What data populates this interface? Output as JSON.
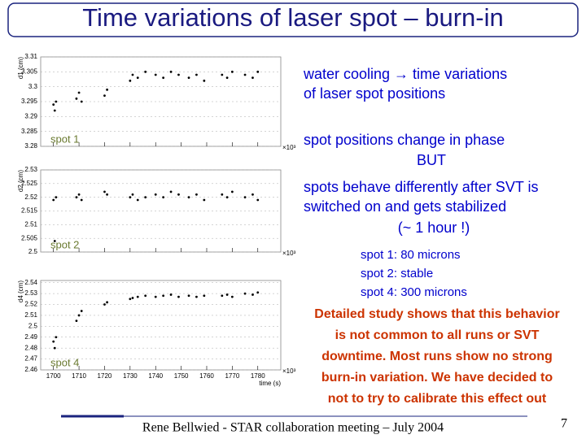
{
  "title": "Time variations of laser spot – burn-in",
  "chart_data": [
    {
      "type": "scatter",
      "ylabel": "d1 (cm)",
      "label": "spot 1",
      "x_multiplier": "×10³",
      "xtick_labels": false,
      "xlim": [
        1695,
        1789
      ],
      "ylim": [
        3.28,
        3.31
      ],
      "xticks": [
        1700,
        1710,
        1720,
        1730,
        1740,
        1750,
        1760,
        1770,
        1780
      ],
      "yticks": [
        3.28,
        3.285,
        3.29,
        3.295,
        3.3,
        3.305,
        3.31
      ],
      "series": [
        {
          "color": "#000000",
          "x": [
            1700,
            1700.5,
            1701,
            1709,
            1710,
            1711,
            1720,
            1721,
            1730,
            1731,
            1733,
            1736,
            1740,
            1743,
            1746,
            1749,
            1753,
            1756,
            1759,
            1766,
            1768,
            1770,
            1775,
            1778,
            1780
          ],
          "values": [
            3.294,
            3.292,
            3.295,
            3.296,
            3.298,
            3.295,
            3.297,
            3.299,
            3.302,
            3.304,
            3.303,
            3.305,
            3.304,
            3.303,
            3.305,
            3.304,
            3.303,
            3.304,
            3.302,
            3.304,
            3.303,
            3.305,
            3.304,
            3.303,
            3.305
          ]
        }
      ]
    },
    {
      "type": "scatter",
      "ylabel": "d2 (cm)",
      "label": "spot 2",
      "x_multiplier": "×10³",
      "xtick_labels": false,
      "xlim": [
        1695,
        1789
      ],
      "ylim": [
        2.5,
        2.53
      ],
      "xticks": [
        1700,
        1710,
        1720,
        1730,
        1740,
        1750,
        1760,
        1770,
        1780
      ],
      "yticks": [
        2.5,
        2.505,
        2.51,
        2.515,
        2.52,
        2.525,
        2.53
      ],
      "series": [
        {
          "color": "#000000",
          "x": [
            1700,
            1700.5,
            1701,
            1709,
            1710,
            1711,
            1720,
            1721,
            1730,
            1731,
            1733,
            1736,
            1740,
            1743,
            1746,
            1749,
            1753,
            1756,
            1759,
            1766,
            1768,
            1770,
            1775,
            1778,
            1780
          ],
          "values": [
            2.519,
            2.504,
            2.52,
            2.52,
            2.521,
            2.519,
            2.522,
            2.521,
            2.52,
            2.521,
            2.519,
            2.52,
            2.521,
            2.52,
            2.522,
            2.521,
            2.52,
            2.521,
            2.519,
            2.521,
            2.52,
            2.522,
            2.52,
            2.521,
            2.519
          ]
        }
      ]
    },
    {
      "type": "scatter",
      "ylabel": "d4 (cm)",
      "label": "spot 4",
      "x_multiplier": "×10³",
      "xlabel": "time (s)",
      "xtick_labels": true,
      "xlim": [
        1695,
        1789
      ],
      "ylim": [
        2.46,
        2.542
      ],
      "xticks": [
        1700,
        1710,
        1720,
        1730,
        1740,
        1750,
        1760,
        1770,
        1780
      ],
      "yticks": [
        2.46,
        2.47,
        2.48,
        2.49,
        2.5,
        2.51,
        2.52,
        2.53,
        2.54
      ],
      "series": [
        {
          "color": "#000000",
          "x": [
            1700,
            1700.5,
            1701,
            1709,
            1710,
            1711,
            1720,
            1721,
            1730,
            1731,
            1733,
            1736,
            1740,
            1743,
            1746,
            1749,
            1753,
            1756,
            1759,
            1766,
            1768,
            1770,
            1775,
            1778,
            1780
          ],
          "values": [
            2.486,
            2.48,
            2.49,
            2.505,
            2.51,
            2.514,
            2.52,
            2.522,
            2.525,
            2.526,
            2.527,
            2.528,
            2.527,
            2.528,
            2.529,
            2.527,
            2.528,
            2.527,
            2.528,
            2.528,
            2.529,
            2.527,
            2.53,
            2.529,
            2.531
          ]
        }
      ]
    }
  ],
  "text": {
    "intro": [
      "water cooling → time variations",
      "of laser spot positions"
    ],
    "phase": "spot positions change in phase",
    "but": "BUT",
    "behave": [
      "spots behave differently after SVT is",
      "switched on and gets  stabilized"
    ],
    "hour": "(~ 1 hour !)",
    "spots": [
      "spot 1: 80 microns",
      "spot 2: stable",
      "spot 4: 300 microns"
    ],
    "study": [
      "Detailed study shows that this behavior",
      "is not common to all runs or SVT",
      "downtime. Most runs show no strong",
      "burn-in variation. We have decided to",
      "not to try to calibrate this effect out"
    ]
  },
  "footer": {
    "text": "Rene Bellwied - STAR collaboration meeting – July 2004",
    "page": "7"
  }
}
